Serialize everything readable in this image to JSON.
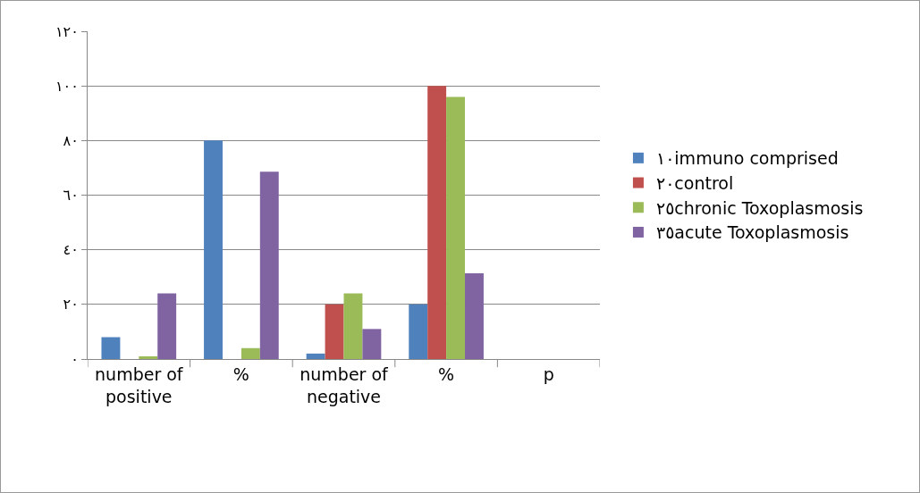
{
  "chart_data": {
    "type": "bar",
    "categories": [
      "number of positive",
      "%",
      "number of negative",
      "%",
      "p"
    ],
    "series": [
      {
        "name": "١٠immuno comprised",
        "color": "#4f81bd",
        "values": [
          8,
          80,
          2,
          20,
          null
        ]
      },
      {
        "name": "٢٠control",
        "color": "#c0504d",
        "values": [
          0,
          0,
          20,
          100,
          null
        ]
      },
      {
        "name": "٢٥chronic Toxoplasmosis",
        "color": "#9bbb59",
        "values": [
          1,
          4,
          24,
          96,
          null
        ]
      },
      {
        "name": "٣٥acute Toxoplasmosis",
        "color": "#8064a2",
        "values": [
          24,
          68.6,
          11,
          31.4,
          null
        ]
      }
    ],
    "ylim": [
      0,
      120
    ],
    "yticks": [
      {
        "value": 0,
        "label": "٠"
      },
      {
        "value": 20,
        "label": "٢٠"
      },
      {
        "value": 40,
        "label": "٤٠"
      },
      {
        "value": 60,
        "label": "٦٠"
      },
      {
        "value": 80,
        "label": "٨٠"
      },
      {
        "value": 100,
        "label": "١٠٠"
      },
      {
        "value": 120,
        "label": "١٢٠"
      }
    ],
    "grid": "y",
    "legend": "right"
  }
}
